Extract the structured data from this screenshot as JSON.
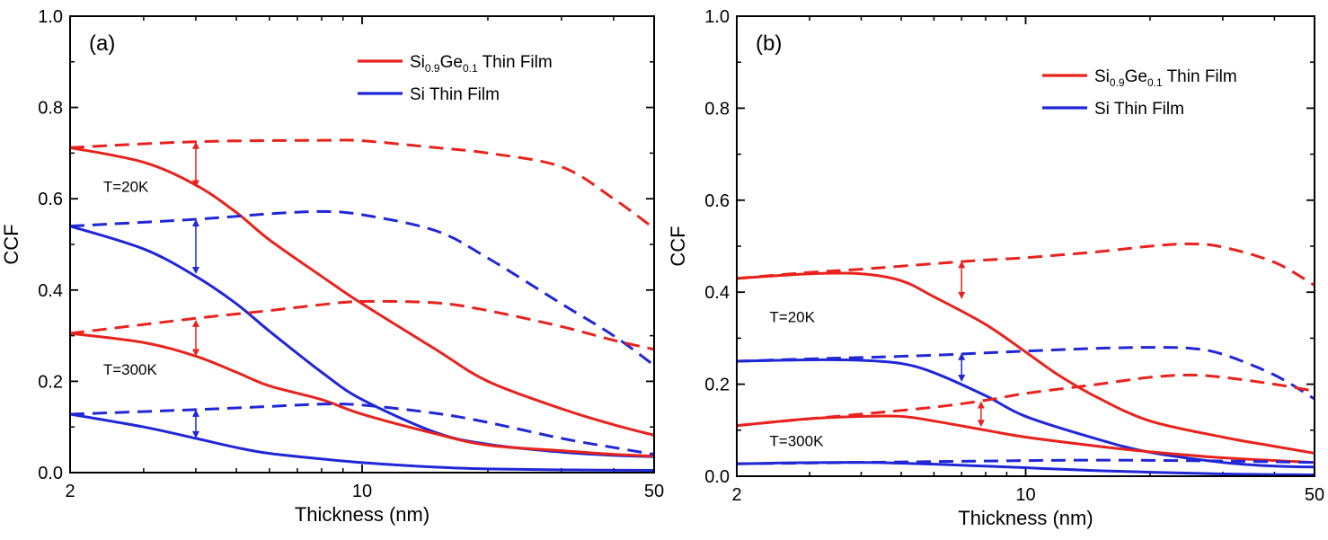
{
  "chart_data": [
    {
      "type": "line",
      "panel_label": "(a)",
      "xlabel": "Thickness (nm)",
      "ylabel": "CCF",
      "xscale": "log",
      "xlim": [
        2,
        50
      ],
      "ylim": [
        0,
        1.0
      ],
      "xticks": [
        "2",
        "10",
        "50"
      ],
      "yticks": [
        "0.0",
        "0.2",
        "0.4",
        "0.6",
        "0.8",
        "1.0"
      ],
      "legend": {
        "placement": "top-right",
        "entries": [
          {
            "main": "Si",
            "sub1": "0.9",
            "mid": "Ge",
            "sub2": "0.1",
            "tail": " Thin Film",
            "color": "#e8221c"
          },
          {
            "main": "Si Thin Film",
            "color": "#1f27d6"
          }
        ]
      },
      "annotations": [
        {
          "text": "T=20K",
          "x": 2.4,
          "y": 0.615
        },
        {
          "text": "T=300K",
          "x": 2.4,
          "y": 0.215
        }
      ],
      "series": [
        {
          "color": "#e8221c",
          "style": "solid",
          "x": [
            2,
            3,
            4,
            5,
            6,
            8,
            10,
            15,
            20,
            30,
            40,
            50
          ],
          "y": [
            0.712,
            0.68,
            0.63,
            0.57,
            0.51,
            0.43,
            0.37,
            0.27,
            0.2,
            0.14,
            0.105,
            0.082
          ]
        },
        {
          "color": "#e8221c",
          "style": "dashed",
          "x": [
            2,
            4,
            8,
            10,
            15,
            20,
            30,
            40,
            50
          ],
          "y": [
            0.712,
            0.725,
            0.728,
            0.727,
            0.712,
            0.7,
            0.67,
            0.6,
            0.535
          ]
        },
        {
          "color": "#1f27d6",
          "style": "solid",
          "x": [
            2,
            3,
            4,
            5,
            6,
            8,
            10,
            15,
            20,
            30,
            40,
            50
          ],
          "y": [
            0.54,
            0.49,
            0.43,
            0.37,
            0.31,
            0.22,
            0.16,
            0.088,
            0.062,
            0.045,
            0.038,
            0.035
          ]
        },
        {
          "color": "#1f27d6",
          "style": "dashed",
          "x": [
            2,
            4,
            6,
            8,
            10,
            15,
            20,
            30,
            40,
            50
          ],
          "y": [
            0.54,
            0.555,
            0.567,
            0.572,
            0.565,
            0.53,
            0.47,
            0.37,
            0.3,
            0.235
          ]
        },
        {
          "color": "#e8221c",
          "style": "solid",
          "x": [
            2,
            3,
            4,
            5,
            6,
            8,
            10,
            15,
            20,
            30,
            40,
            50
          ],
          "y": [
            0.305,
            0.285,
            0.255,
            0.22,
            0.19,
            0.16,
            0.128,
            0.085,
            0.06,
            0.048,
            0.04,
            0.036
          ]
        },
        {
          "color": "#e8221c",
          "style": "dashed",
          "x": [
            2,
            4,
            6,
            8,
            10,
            15,
            20,
            30,
            40,
            50
          ],
          "y": [
            0.305,
            0.338,
            0.355,
            0.368,
            0.375,
            0.372,
            0.355,
            0.32,
            0.29,
            0.27
          ]
        },
        {
          "color": "#1f27d6",
          "style": "solid",
          "x": [
            2,
            3,
            4,
            5,
            6,
            8,
            10,
            15,
            20,
            30,
            50
          ],
          "y": [
            0.128,
            0.1,
            0.075,
            0.055,
            0.042,
            0.03,
            0.022,
            0.012,
            0.008,
            0.006,
            0.005
          ]
        },
        {
          "color": "#1f27d6",
          "style": "dashed",
          "x": [
            2,
            4,
            6,
            8,
            10,
            15,
            20,
            30,
            40,
            50
          ],
          "y": [
            0.128,
            0.138,
            0.145,
            0.15,
            0.148,
            0.13,
            0.11,
            0.075,
            0.055,
            0.04
          ]
        }
      ],
      "arrows": [
        {
          "color": "#e8221c",
          "x": 4.0,
          "y1": 0.625,
          "y2": 0.725
        },
        {
          "color": "#1f27d6",
          "x": 4.0,
          "y1": 0.435,
          "y2": 0.555
        },
        {
          "color": "#e8221c",
          "x": 4.0,
          "y1": 0.255,
          "y2": 0.335
        },
        {
          "color": "#1f27d6",
          "x": 4.0,
          "y1": 0.075,
          "y2": 0.138
        }
      ]
    },
    {
      "type": "line",
      "panel_label": "(b)",
      "xlabel": "Thickness (nm)",
      "ylabel": "CCF",
      "xscale": "log",
      "xlim": [
        2,
        50
      ],
      "ylim": [
        0,
        1.0
      ],
      "xticks": [
        "2",
        "10",
        "50"
      ],
      "yticks": [
        "0.0",
        "0.2",
        "0.4",
        "0.6",
        "0.8",
        "1.0"
      ],
      "legend": {
        "placement": "top-right",
        "entries": [
          {
            "main": "Si",
            "sub1": "0.9",
            "mid": "Ge",
            "sub2": "0.1",
            "tail": " Thin Film",
            "color": "#e8221c"
          },
          {
            "main": "Si Thin Film",
            "color": "#1f27d6"
          }
        ]
      },
      "annotations": [
        {
          "text": "T=20K",
          "x": 2.4,
          "y": 0.335
        },
        {
          "text": "T=300K",
          "x": 2.4,
          "y": 0.065
        }
      ],
      "series": [
        {
          "color": "#e8221c",
          "style": "solid",
          "x": [
            2,
            3,
            4,
            5,
            6,
            8,
            10,
            12,
            15,
            20,
            30,
            40,
            50
          ],
          "y": [
            0.43,
            0.44,
            0.44,
            0.425,
            0.39,
            0.33,
            0.27,
            0.22,
            0.17,
            0.12,
            0.085,
            0.065,
            0.05
          ]
        },
        {
          "color": "#e8221c",
          "style": "dashed",
          "x": [
            2,
            3,
            4,
            6,
            8,
            10,
            15,
            20,
            25,
            30,
            40,
            50
          ],
          "y": [
            0.43,
            0.443,
            0.45,
            0.462,
            0.47,
            0.475,
            0.488,
            0.5,
            0.505,
            0.498,
            0.465,
            0.415
          ]
        },
        {
          "color": "#1f27d6",
          "style": "solid",
          "x": [
            2,
            3,
            4,
            5,
            6,
            8,
            10,
            15,
            20,
            30,
            40,
            50
          ],
          "y": [
            0.25,
            0.253,
            0.252,
            0.245,
            0.225,
            0.175,
            0.13,
            0.08,
            0.052,
            0.03,
            0.022,
            0.02
          ]
        },
        {
          "color": "#1f27d6",
          "style": "dashed",
          "x": [
            2,
            3,
            4,
            6,
            8,
            10,
            15,
            20,
            25,
            30,
            40,
            50
          ],
          "y": [
            0.25,
            0.255,
            0.258,
            0.263,
            0.268,
            0.272,
            0.278,
            0.28,
            0.278,
            0.265,
            0.22,
            0.168
          ]
        },
        {
          "color": "#e8221c",
          "style": "solid",
          "x": [
            2,
            3,
            4,
            5,
            6,
            8,
            10,
            15,
            20,
            30,
            50
          ],
          "y": [
            0.11,
            0.125,
            0.13,
            0.13,
            0.12,
            0.1,
            0.085,
            0.065,
            0.053,
            0.04,
            0.03
          ]
        },
        {
          "color": "#e8221c",
          "style": "dashed",
          "x": [
            2,
            3,
            4,
            6,
            8,
            10,
            15,
            20,
            25,
            30,
            40,
            50
          ],
          "y": [
            0.11,
            0.125,
            0.135,
            0.15,
            0.165,
            0.18,
            0.2,
            0.215,
            0.22,
            0.215,
            0.2,
            0.185
          ]
        },
        {
          "color": "#1f27d6",
          "style": "solid",
          "x": [
            2,
            4,
            8,
            15,
            30,
            50
          ],
          "y": [
            0.027,
            0.03,
            0.022,
            0.012,
            0.005,
            0.003
          ]
        },
        {
          "color": "#1f27d6",
          "style": "dashed",
          "x": [
            2,
            4,
            8,
            15,
            30,
            50
          ],
          "y": [
            0.027,
            0.03,
            0.033,
            0.035,
            0.033,
            0.03
          ]
        }
      ],
      "arrows": [
        {
          "color": "#e8221c",
          "x": 7.0,
          "y1": 0.385,
          "y2": 0.468
        },
        {
          "color": "#1f27d6",
          "x": 7.0,
          "y1": 0.205,
          "y2": 0.268
        },
        {
          "color": "#e8221c",
          "x": 7.8,
          "y1": 0.107,
          "y2": 0.163
        }
      ]
    }
  ]
}
